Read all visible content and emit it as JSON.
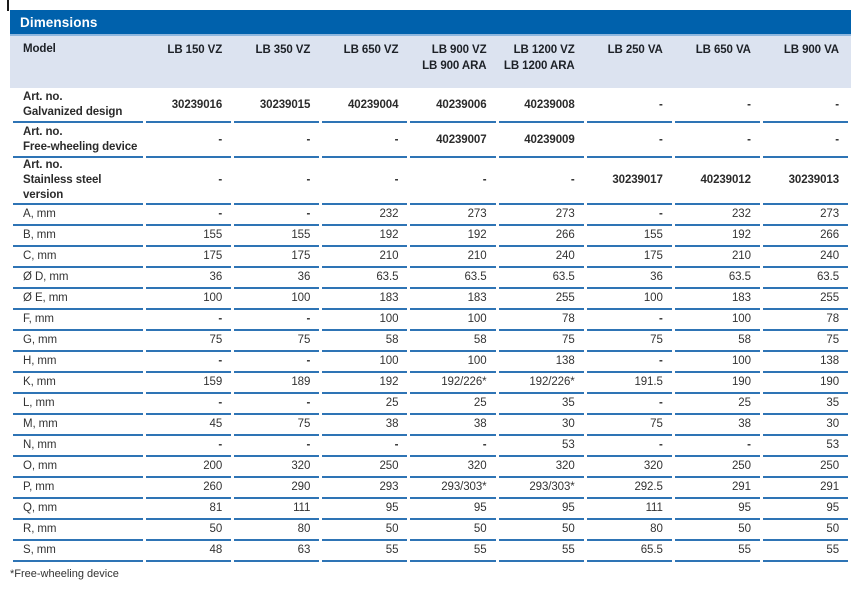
{
  "panel": {
    "title": "Dimensions",
    "footnote": "*Free-wheeling device"
  },
  "table": {
    "model_label": "Model",
    "columns": [
      "LB 150 VZ",
      "LB 350 VZ",
      "LB 650 VZ",
      "LB 900 VZ\nLB 900 ARA",
      "LB 1200 VZ\nLB 1200 ARA",
      "LB 250 VA",
      "LB 650 VA",
      "LB 900 VA"
    ],
    "rows": [
      {
        "type": "art",
        "label": "Art. no.\nGalvanized design",
        "values": [
          "30239016",
          "30239015",
          "40239004",
          "40239006",
          "40239008",
          "-",
          "-",
          "-"
        ]
      },
      {
        "type": "art",
        "label": "Art. no.\nFree-wheeling device",
        "values": [
          "-",
          "-",
          "-",
          "40239007",
          "40239009",
          "-",
          "-",
          "-"
        ]
      },
      {
        "type": "art",
        "label": "Art. no.\nStainless steel version",
        "values": [
          "-",
          "-",
          "-",
          "-",
          "-",
          "30239017",
          "40239012",
          "30239013"
        ]
      },
      {
        "type": "dim",
        "label": "A, mm",
        "values": [
          "-",
          "-",
          "232",
          "273",
          "273",
          "-",
          "232",
          "273"
        ]
      },
      {
        "type": "dim",
        "label": "B, mm",
        "values": [
          "155",
          "155",
          "192",
          "192",
          "266",
          "155",
          "192",
          "266"
        ]
      },
      {
        "type": "dim",
        "label": "C, mm",
        "values": [
          "175",
          "175",
          "210",
          "210",
          "240",
          "175",
          "210",
          "240"
        ]
      },
      {
        "type": "dim",
        "label": "Ø D, mm",
        "values": [
          "36",
          "36",
          "63.5",
          "63.5",
          "63.5",
          "36",
          "63.5",
          "63.5"
        ]
      },
      {
        "type": "dim",
        "label": "Ø E, mm",
        "values": [
          "100",
          "100",
          "183",
          "183",
          "255",
          "100",
          "183",
          "255"
        ]
      },
      {
        "type": "dim",
        "label": "F, mm",
        "values": [
          "-",
          "-",
          "100",
          "100",
          "78",
          "-",
          "100",
          "78"
        ]
      },
      {
        "type": "dim",
        "label": "G, mm",
        "values": [
          "75",
          "75",
          "58",
          "58",
          "75",
          "75",
          "58",
          "75"
        ]
      },
      {
        "type": "dim",
        "label": "H, mm",
        "values": [
          "-",
          "-",
          "100",
          "100",
          "138",
          "-",
          "100",
          "138"
        ]
      },
      {
        "type": "dim",
        "label": "K, mm",
        "values": [
          "159",
          "189",
          "192",
          "192/226*",
          "192/226*",
          "191.5",
          "190",
          "190"
        ]
      },
      {
        "type": "dim",
        "label": "L, mm",
        "values": [
          "-",
          "-",
          "25",
          "25",
          "35",
          "-",
          "25",
          "35"
        ]
      },
      {
        "type": "dim",
        "label": "M, mm",
        "values": [
          "45",
          "75",
          "38",
          "38",
          "30",
          "75",
          "38",
          "30"
        ]
      },
      {
        "type": "dim",
        "label": "N, mm",
        "values": [
          "-",
          "-",
          "-",
          "-",
          "53",
          "-",
          "-",
          "53"
        ]
      },
      {
        "type": "dim",
        "label": "O, mm",
        "values": [
          "200",
          "320",
          "250",
          "320",
          "320",
          "320",
          "250",
          "250"
        ]
      },
      {
        "type": "dim",
        "label": "P, mm",
        "values": [
          "260",
          "290",
          "293",
          "293/303*",
          "293/303*",
          "292.5",
          "291",
          "291"
        ]
      },
      {
        "type": "dim",
        "label": "Q, mm",
        "values": [
          "81",
          "111",
          "95",
          "95",
          "95",
          "111",
          "95",
          "95"
        ]
      },
      {
        "type": "dim",
        "label": "R, mm",
        "values": [
          "50",
          "80",
          "50",
          "50",
          "50",
          "80",
          "50",
          "50"
        ]
      },
      {
        "type": "dim",
        "label": "S, mm",
        "values": [
          "48",
          "63",
          "55",
          "55",
          "55",
          "65.5",
          "55",
          "55"
        ]
      }
    ]
  },
  "colors": {
    "brandBlue": "#0061ac",
    "bandBg": "#dce3f0",
    "ruleBlue": "#2e74b5",
    "bandLine": "#8fb7de",
    "headText": "#1d2127",
    "text": "#333333"
  }
}
